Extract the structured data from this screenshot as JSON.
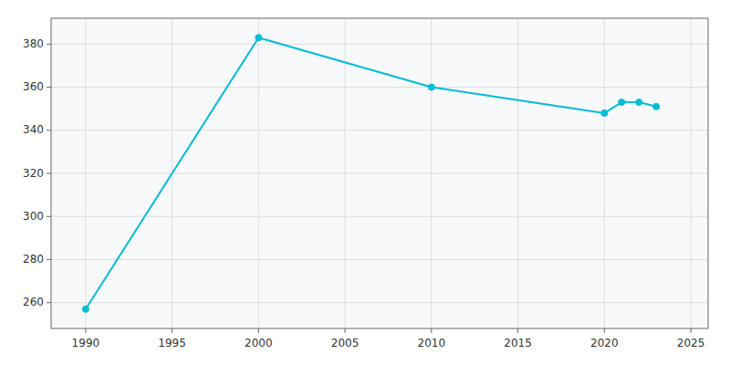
{
  "chart_data": {
    "type": "line",
    "x": [
      1990,
      2000,
      2010,
      2020,
      2021,
      2022,
      2023
    ],
    "values": [
      257,
      383,
      360,
      348,
      353,
      353,
      351
    ],
    "color": "#00bcd4",
    "marker": "circle",
    "xlim": [
      1988,
      2026
    ],
    "ylim": [
      248,
      392
    ],
    "xticks": [
      1990,
      1995,
      2000,
      2005,
      2010,
      2015,
      2020,
      2025
    ],
    "yticks": [
      260,
      280,
      300,
      320,
      340,
      360,
      380
    ],
    "grid": true
  }
}
